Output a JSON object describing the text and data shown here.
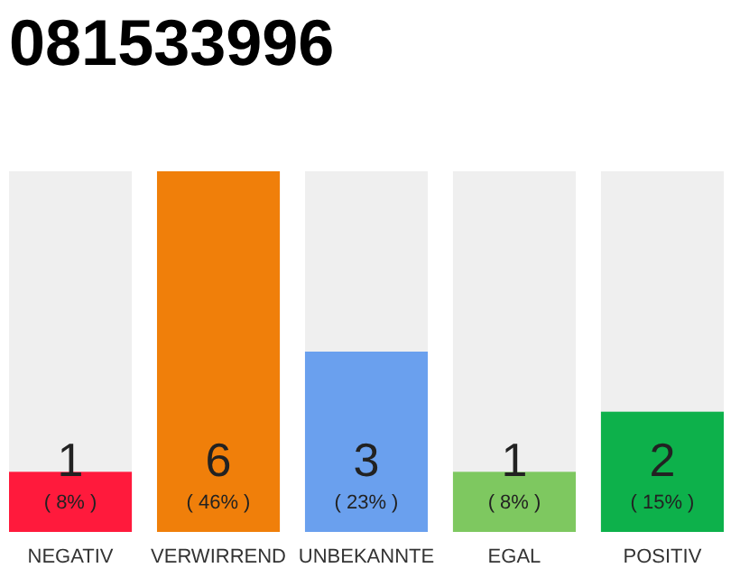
{
  "chart_data": {
    "type": "bar",
    "title": "081533996",
    "categories": [
      "NEGATIV",
      "VERWIRREND",
      "UNBEKANNTE",
      "EGAL",
      "POSITIV"
    ],
    "values": [
      1,
      6,
      3,
      1,
      2
    ],
    "colors": [
      "#ff1a3c",
      "#f07f0a",
      "#6aa0ee",
      "#7ec860",
      "#0db14b"
    ],
    "data_labels": true,
    "annotations": [
      "( 8% )",
      "( 46% )",
      "( 23% )",
      "( 8% )",
      "( 15% )"
    ]
  }
}
